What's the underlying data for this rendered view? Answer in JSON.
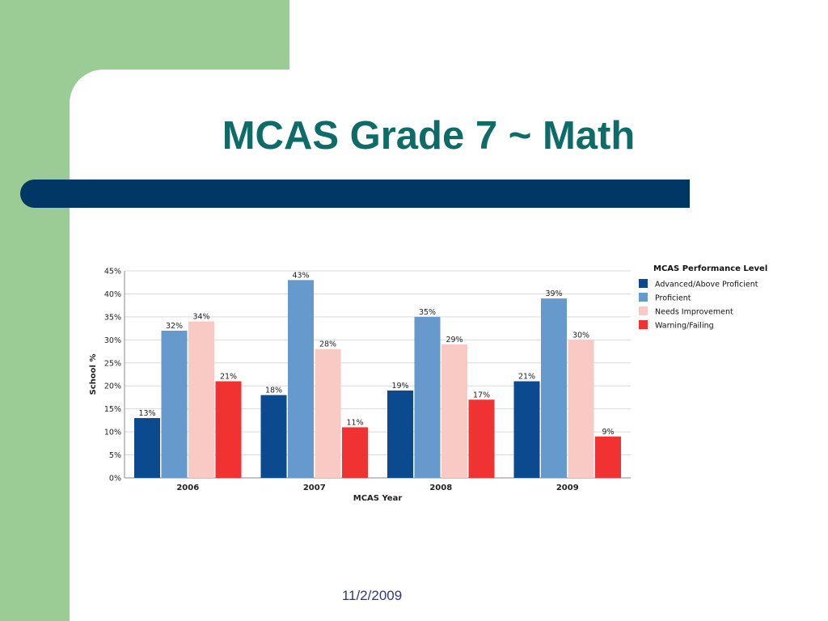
{
  "slide": {
    "title": "MCAS Grade 7 ~ Math",
    "date": "11/2/2009"
  },
  "colors": {
    "background_green": "#9ccc96",
    "title_color": "#0d6b68",
    "title_bar": "#003764"
  },
  "chart_data": {
    "type": "bar",
    "categories": [
      "2006",
      "2007",
      "2008",
      "2009"
    ],
    "series": [
      {
        "name": "Advanced/Above Proficient",
        "color": "#0b4a8f",
        "values": [
          13,
          18,
          19,
          21
        ],
        "labels": [
          "13%",
          "18%",
          "19%",
          "21%"
        ]
      },
      {
        "name": "Proficient",
        "color": "#6699cc",
        "values": [
          32,
          43,
          35,
          39
        ],
        "labels": [
          "32%",
          "43%",
          "35%",
          "39%"
        ]
      },
      {
        "name": "Needs Improvement",
        "color": "#f9c9c4",
        "values": [
          34,
          28,
          29,
          30
        ],
        "labels": [
          "34%",
          "28%",
          "29%",
          "30%"
        ]
      },
      {
        "name": "Warning/Failing",
        "color": "#f03232",
        "values": [
          21,
          11,
          17,
          9
        ],
        "labels": [
          "21%",
          "11%",
          "17%",
          "9%"
        ]
      }
    ],
    "xlabel": "MCAS Year",
    "ylabel": "School %",
    "ylim": [
      0,
      45
    ],
    "yticks": [
      "0%",
      "5%",
      "10%",
      "15%",
      "20%",
      "25%",
      "30%",
      "35%",
      "40%",
      "45%"
    ],
    "legend_title": "MCAS Performance Level",
    "legend_position": "right",
    "grid": true
  }
}
